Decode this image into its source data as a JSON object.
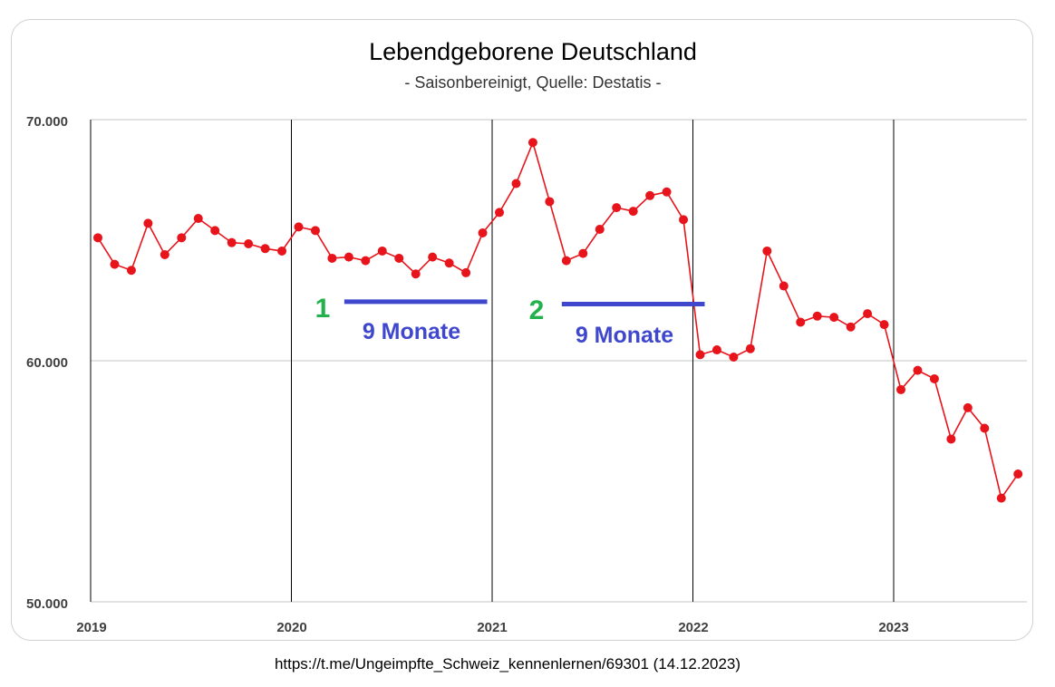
{
  "chart_data": {
    "type": "line",
    "title": "Lebendgeborene Deutschland",
    "subtitle": "- Saisonbereinigt, Quelle: Destatis -",
    "xlabel": "",
    "ylabel": "",
    "ylim": [
      50000,
      70000
    ],
    "yticks": [
      {
        "value": 50000,
        "label": "50.000"
      },
      {
        "value": 60000,
        "label": "60.000"
      },
      {
        "value": 70000,
        "label": "70.000"
      }
    ],
    "year_labels": [
      "2019",
      "2020",
      "2021",
      "2022",
      "2023"
    ],
    "grid": true,
    "series": [
      {
        "name": "Lebendgeborene",
        "color": "#e8141b",
        "x": [
          "2019-01",
          "2019-02",
          "2019-03",
          "2019-04",
          "2019-05",
          "2019-06",
          "2019-07",
          "2019-08",
          "2019-09",
          "2019-10",
          "2019-11",
          "2019-12",
          "2020-01",
          "2020-02",
          "2020-03",
          "2020-04",
          "2020-05",
          "2020-06",
          "2020-07",
          "2020-08",
          "2020-09",
          "2020-10",
          "2020-11",
          "2020-12",
          "2021-01",
          "2021-02",
          "2021-03",
          "2021-04",
          "2021-05",
          "2021-06",
          "2021-07",
          "2021-08",
          "2021-09",
          "2021-10",
          "2021-11",
          "2021-12",
          "2022-01",
          "2022-02",
          "2022-03",
          "2022-04",
          "2022-05",
          "2022-06",
          "2022-07",
          "2022-08",
          "2022-09",
          "2022-10",
          "2022-11",
          "2022-12",
          "2023-01",
          "2023-02",
          "2023-03",
          "2023-04",
          "2023-05",
          "2023-06",
          "2023-07",
          "2023-08"
        ],
        "values": [
          65100,
          64000,
          63750,
          65700,
          64400,
          65100,
          65900,
          65400,
          64900,
          64850,
          64650,
          64550,
          65550,
          65400,
          64250,
          64300,
          64150,
          64550,
          64250,
          63600,
          64300,
          64050,
          63650,
          65300,
          66150,
          67350,
          69050,
          66600,
          64150,
          64450,
          65450,
          66350,
          66200,
          66850,
          67000,
          65850,
          60250,
          60450,
          60150,
          60500,
          64550,
          63100,
          61600,
          61850,
          61800,
          61400,
          61950,
          61500,
          58800,
          59600,
          59250,
          56750,
          58050,
          57200,
          54300,
          55300
        ]
      }
    ],
    "annotations": [
      {
        "number": "1",
        "text": "9 Monate",
        "x_start": "2020-04",
        "x_end": "2020-12",
        "y": 62450
      },
      {
        "number": "2",
        "text": "9 Monate",
        "x_start": "2021-05",
        "x_end": "2022-01",
        "y": 62350
      }
    ]
  },
  "source_text": "https://t.me/Ungeimpfte_Schweiz_kennenlernen/69301 (14.12.2023)",
  "colors": {
    "line": "#e8141b",
    "annotation_bar": "#3f48cc",
    "annotation_number": "#22b14c",
    "grid": "#d9d9d9"
  }
}
